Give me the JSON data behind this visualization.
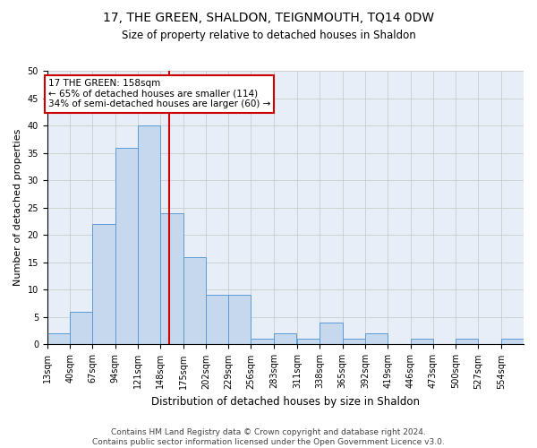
{
  "title": "17, THE GREEN, SHALDON, TEIGNMOUTH, TQ14 0DW",
  "subtitle": "Size of property relative to detached houses in Shaldon",
  "xlabel": "Distribution of detached houses by size in Shaldon",
  "ylabel": "Number of detached properties",
  "footnote1": "Contains HM Land Registry data © Crown copyright and database right 2024.",
  "footnote2": "Contains public sector information licensed under the Open Government Licence v3.0.",
  "bins": [
    13,
    40,
    67,
    94,
    121,
    148,
    175,
    202,
    229,
    256,
    283,
    311,
    338,
    365,
    392,
    419,
    446,
    473,
    500,
    527,
    554
  ],
  "counts": [
    2,
    6,
    22,
    36,
    40,
    24,
    16,
    9,
    9,
    1,
    2,
    1,
    4,
    1,
    2,
    0,
    1,
    0,
    1,
    0,
    1
  ],
  "bar_color": "#c5d8ed",
  "bar_edge_color": "#5b9bd5",
  "grid_color": "#cccccc",
  "bg_color": "#e8eef8",
  "property_size": 158,
  "vline_color": "#cc0000",
  "ylim": [
    0,
    50
  ],
  "yticks": [
    0,
    5,
    10,
    15,
    20,
    25,
    30,
    35,
    40,
    45,
    50
  ],
  "annotation_line1": "17 THE GREEN: 158sqm",
  "annotation_line2": "← 65% of detached houses are smaller (114)",
  "annotation_line3": "34% of semi-detached houses are larger (60) →",
  "title_fontsize": 10,
  "subtitle_fontsize": 8.5,
  "xlabel_fontsize": 8.5,
  "ylabel_fontsize": 8,
  "footnote_fontsize": 6.5,
  "tick_fontsize": 7,
  "annot_fontsize": 7.5
}
